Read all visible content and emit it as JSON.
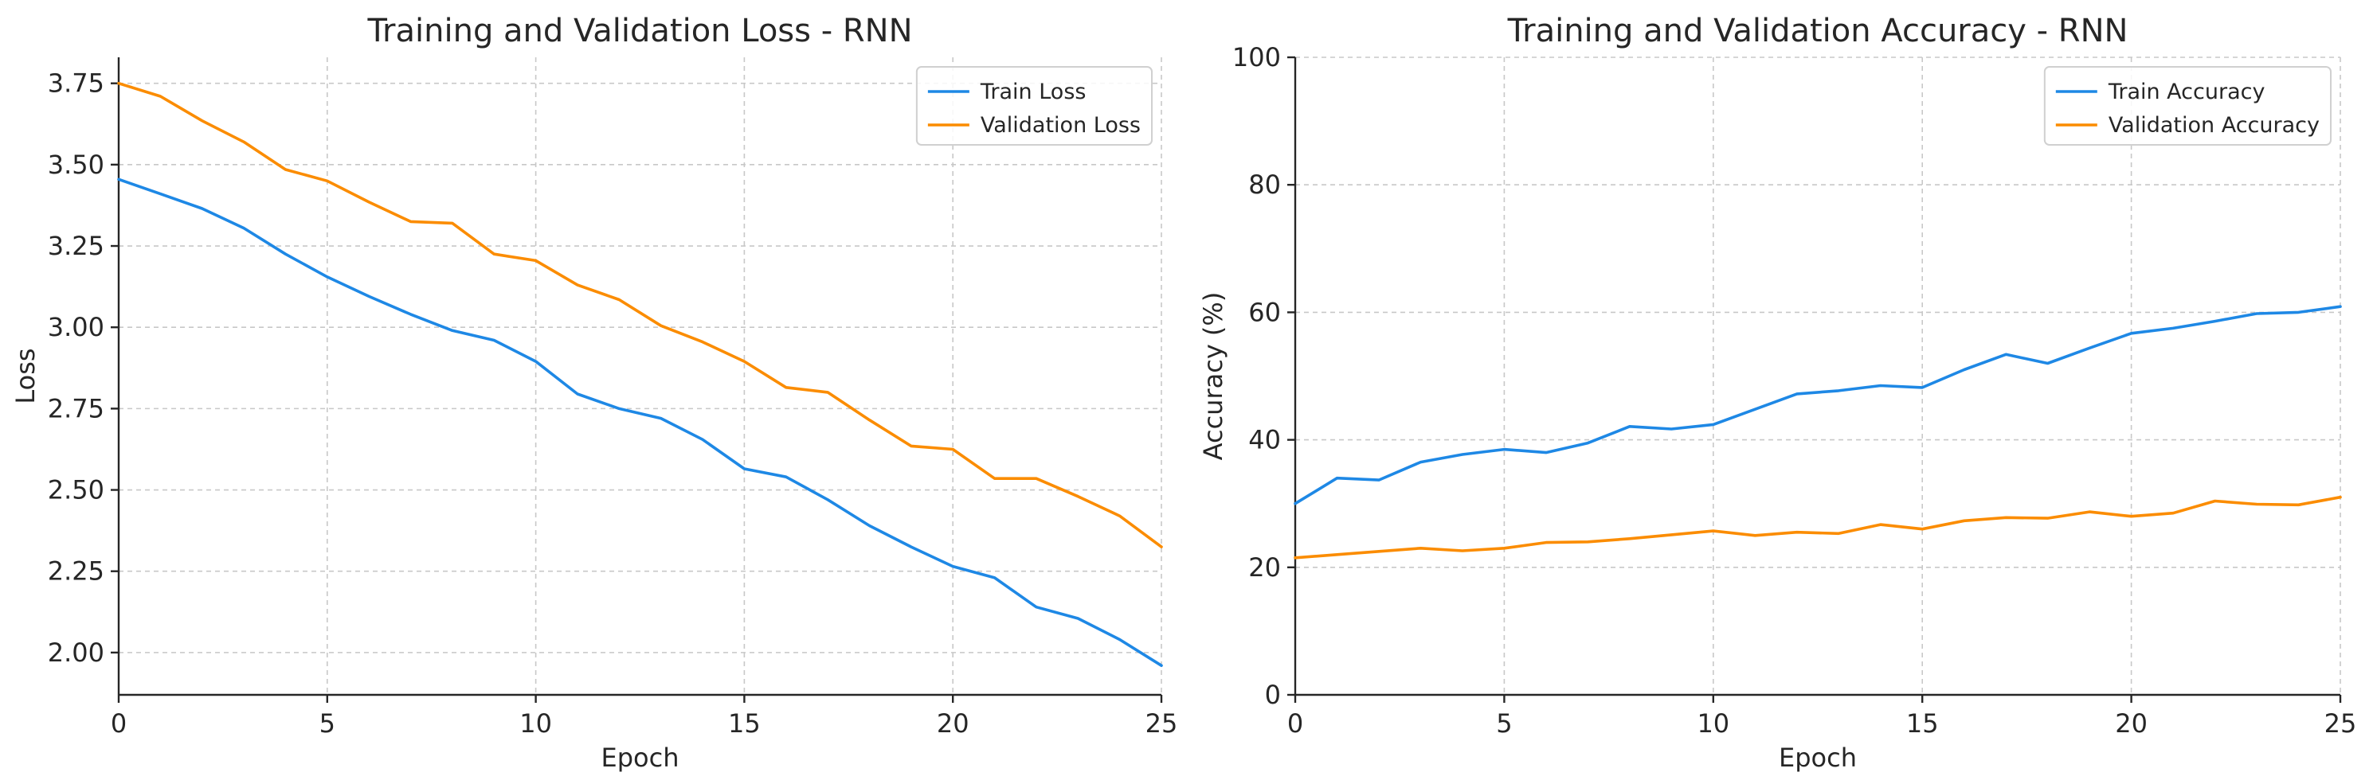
{
  "chart_data": [
    {
      "type": "line",
      "title": "Training and Validation Loss - RNN",
      "xlabel": "Epoch",
      "ylabel": "Loss",
      "xlim": [
        0,
        25
      ],
      "ylim": [
        1.87,
        3.83
      ],
      "xticks": [
        0,
        5,
        10,
        15,
        20,
        25
      ],
      "yticks": [
        2.0,
        2.25,
        2.5,
        2.75,
        3.0,
        3.25,
        3.5,
        3.75
      ],
      "ytick_decimals": 2,
      "grid": true,
      "legend_position": "top-right",
      "x": [
        0,
        1,
        2,
        3,
        4,
        5,
        6,
        7,
        8,
        9,
        10,
        11,
        12,
        13,
        14,
        15,
        16,
        17,
        18,
        19,
        20,
        21,
        22,
        23,
        24,
        25
      ],
      "series": [
        {
          "name": "Train Loss",
          "color": "#1e88e5",
          "values": [
            3.455,
            3.41,
            3.365,
            3.305,
            3.225,
            3.155,
            3.095,
            3.04,
            2.99,
            2.96,
            2.895,
            2.795,
            2.75,
            2.72,
            2.655,
            2.565,
            2.54,
            2.47,
            2.39,
            2.325,
            2.265,
            2.23,
            2.14,
            2.105,
            2.04,
            1.96
          ]
        },
        {
          "name": "Validation Loss",
          "color": "#fb8c00",
          "values": [
            3.75,
            3.71,
            3.635,
            3.57,
            3.485,
            3.45,
            3.385,
            3.325,
            3.32,
            3.225,
            3.205,
            3.13,
            3.085,
            3.005,
            2.955,
            2.895,
            2.815,
            2.8,
            2.715,
            2.635,
            2.625,
            2.535,
            2.535,
            2.48,
            2.42,
            2.325
          ]
        }
      ]
    },
    {
      "type": "line",
      "title": "Training and Validation Accuracy - RNN",
      "xlabel": "Epoch",
      "ylabel": "Accuracy (%)",
      "xlim": [
        0,
        25
      ],
      "ylim": [
        0,
        100
      ],
      "xticks": [
        0,
        5,
        10,
        15,
        20,
        25
      ],
      "yticks": [
        0,
        20,
        40,
        60,
        80,
        100
      ],
      "ytick_decimals": 0,
      "grid": true,
      "legend_position": "top-right",
      "x": [
        0,
        1,
        2,
        3,
        4,
        5,
        6,
        7,
        8,
        9,
        10,
        11,
        12,
        13,
        14,
        15,
        16,
        17,
        18,
        19,
        20,
        21,
        22,
        23,
        24,
        25
      ],
      "series": [
        {
          "name": "Train Accuracy",
          "color": "#1e88e5",
          "values": [
            30.0,
            34.0,
            33.7,
            36.5,
            37.7,
            38.5,
            38.0,
            39.5,
            42.1,
            41.7,
            42.4,
            44.8,
            47.2,
            47.7,
            48.5,
            48.2,
            51.0,
            53.4,
            52.0,
            54.4,
            56.7,
            57.5,
            58.6,
            59.8,
            60.0,
            60.9
          ]
        },
        {
          "name": "Validation Accuracy",
          "color": "#fb8c00",
          "values": [
            21.5,
            22.0,
            22.5,
            23.0,
            22.6,
            23.0,
            23.9,
            24.0,
            24.5,
            25.1,
            25.7,
            25.0,
            25.5,
            25.3,
            26.7,
            26.0,
            27.3,
            27.8,
            27.7,
            28.7,
            28.0,
            28.5,
            30.4,
            29.9,
            29.8,
            31.0
          ]
        }
      ]
    }
  ]
}
